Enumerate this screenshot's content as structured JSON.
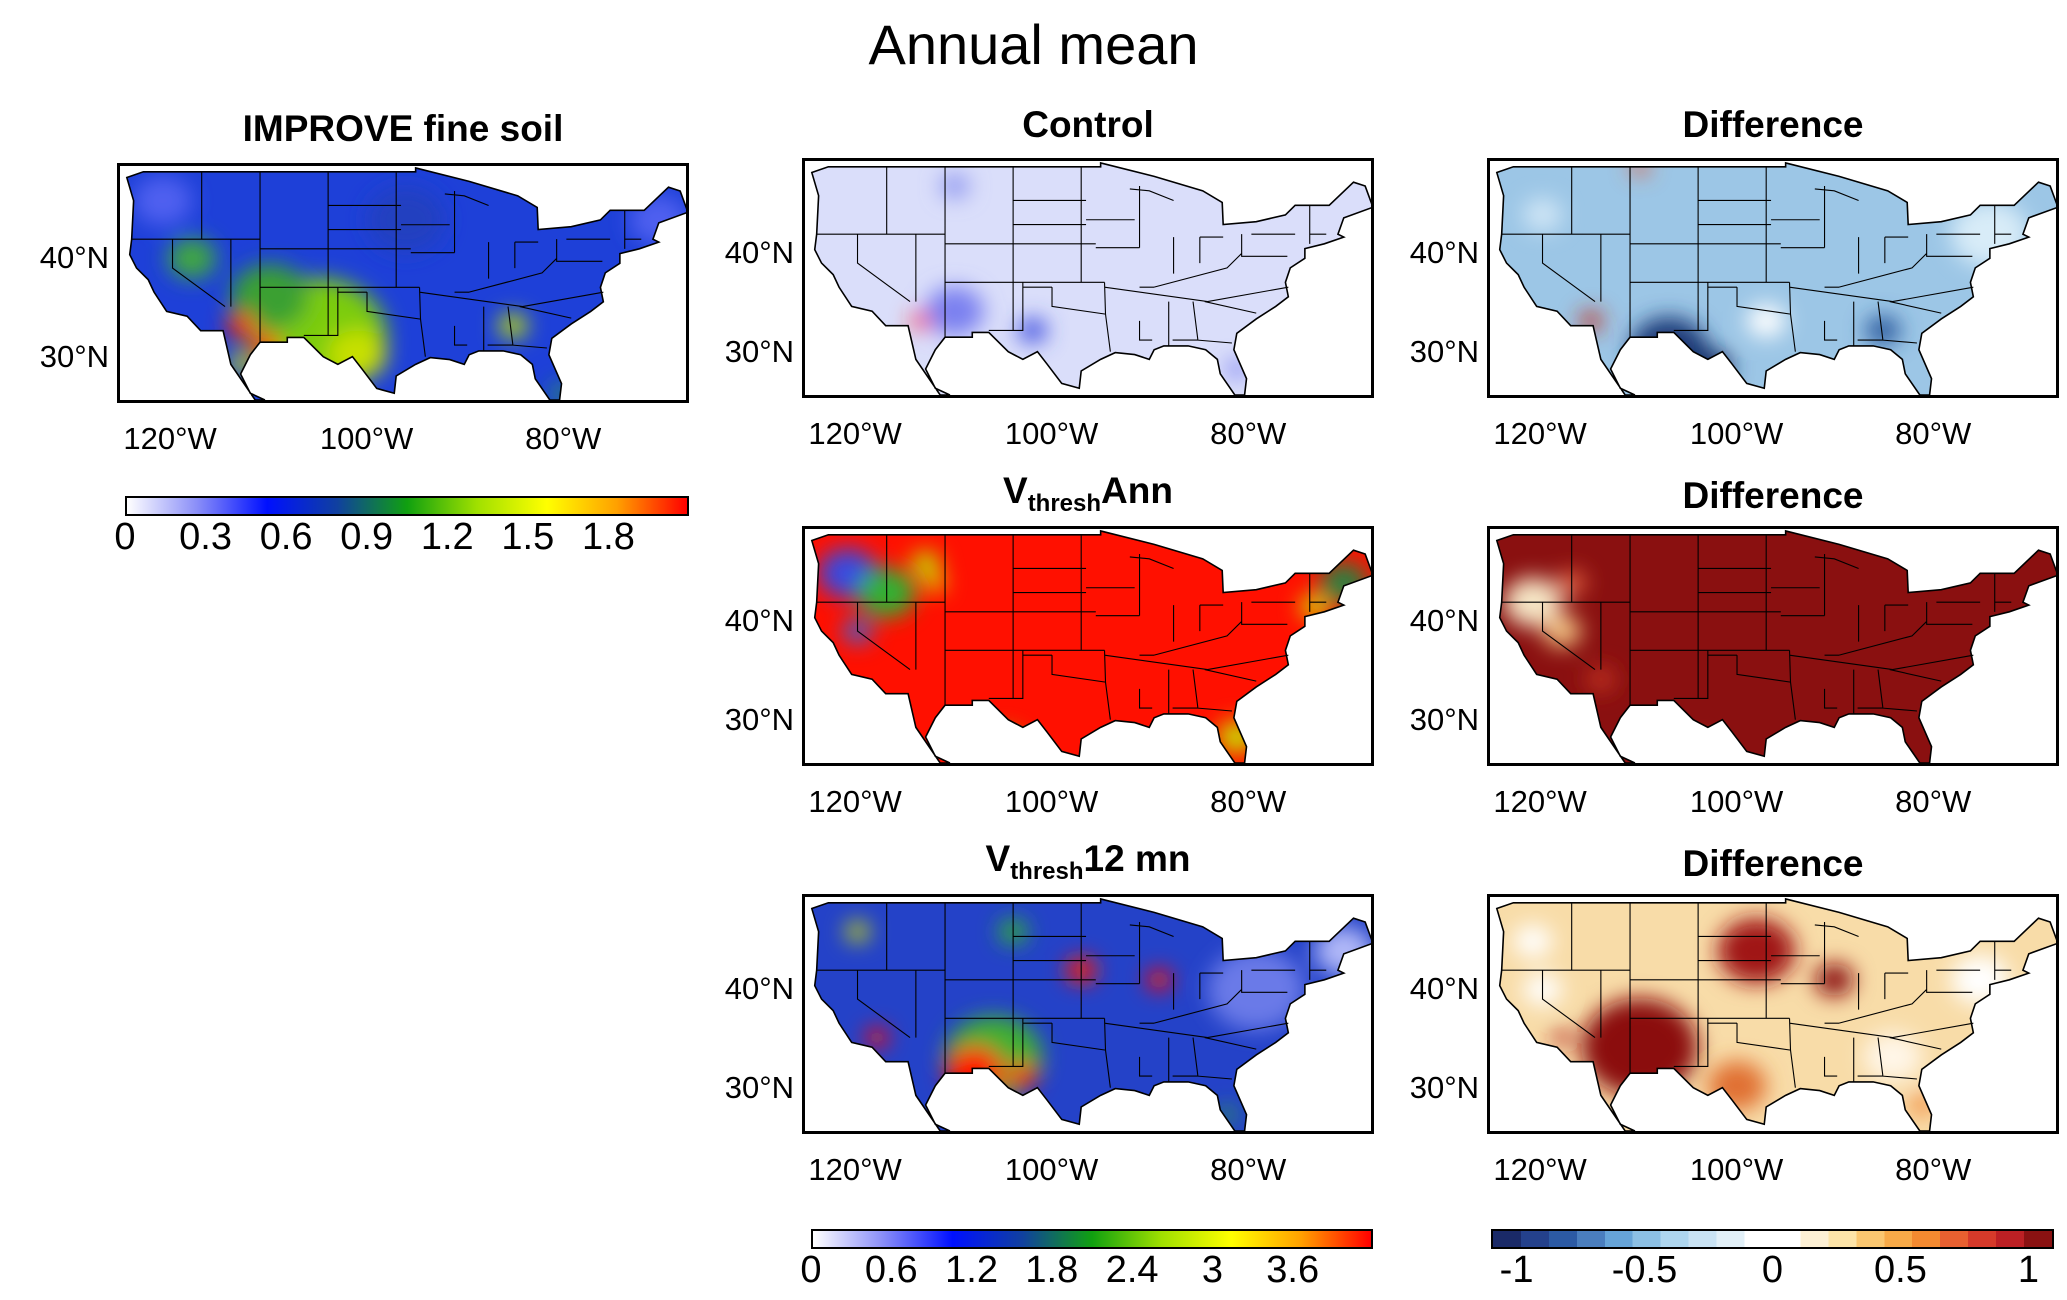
{
  "title": "Annual mean",
  "axis_labels": {
    "lat": [
      {
        "value": 40,
        "label": "40°N"
      },
      {
        "value": 30,
        "label": "30°N"
      }
    ],
    "lon": [
      {
        "value": -120,
        "label": "120°W"
      },
      {
        "value": -100,
        "label": "100°W"
      },
      {
        "value": -80,
        "label": "80°W"
      }
    ]
  },
  "panels": [
    {
      "id": "improve",
      "title": "IMPROVE fine soil",
      "base": "#1e40d8",
      "blobs": [
        [
          -105,
          32,
          7,
          "#7ccc10"
        ],
        [
          -110,
          36,
          4,
          "#3aa030"
        ],
        [
          -118,
          40,
          2.5,
          "#40a840"
        ],
        [
          -113,
          33,
          1.5,
          "#ff2000"
        ],
        [
          -110.5,
          30.8,
          1.6,
          "#ff1a00"
        ],
        [
          -101,
          30,
          3,
          "#c8e000"
        ],
        [
          -85,
          33,
          1.5,
          "#c0e000"
        ],
        [
          -121,
          46,
          3,
          "#5060f0"
        ],
        [
          -70,
          44,
          3,
          "#5060f0"
        ],
        [
          -96,
          44,
          4,
          "#2040c0"
        ],
        [
          -80,
          26,
          1,
          "#30b030"
        ],
        [
          -113,
          29,
          1.2,
          "#d8f000"
        ]
      ]
    },
    {
      "id": "control",
      "title": "Control",
      "base": "#dadefa",
      "blobs": [
        [
          -110,
          34,
          3,
          "#7a80f0"
        ],
        [
          -113.5,
          33,
          1,
          "#ff2000"
        ],
        [
          -102,
          32,
          1.5,
          "#4050e0"
        ],
        [
          -110,
          47,
          1.5,
          "#9098f0"
        ],
        [
          -81,
          28,
          1,
          "#6a70f0"
        ]
      ]
    },
    {
      "id": "diff1",
      "title": "Difference",
      "base": "#9cc6e6",
      "blobs": [
        [
          -107,
          30,
          4,
          "#1a3a78"
        ],
        [
          -103,
          28,
          2.5,
          "#15306a"
        ],
        [
          -115,
          33,
          1.2,
          "#c03020"
        ],
        [
          -85,
          32,
          1.8,
          "#2a5a9e"
        ],
        [
          -110,
          49,
          1,
          "#e06040"
        ],
        [
          -74,
          42,
          4,
          "#d8ecf8"
        ],
        [
          -120,
          44,
          2,
          "#d0e6f6"
        ],
        [
          -97,
          33,
          2,
          "#ffffff"
        ]
      ]
    },
    {
      "id": "vann",
      "title_parts": [
        "V",
        "thresh",
        "Ann"
      ],
      "base": "#ff1000",
      "blobs": [
        [
          -121,
          45,
          3,
          "#3848e0"
        ],
        [
          -117,
          43,
          3,
          "#30b030"
        ],
        [
          -113,
          46,
          1.5,
          "#c0e000"
        ],
        [
          -120,
          39,
          1.5,
          "#4060d0"
        ],
        [
          -70,
          44,
          2.5,
          "#2a8040"
        ],
        [
          -73,
          41.5,
          1.5,
          "#d0e000"
        ],
        [
          -81,
          28,
          2,
          "#c8e000"
        ],
        [
          -105,
          27,
          2,
          "#80d000"
        ],
        [
          -112,
          44,
          1,
          "#d8f000"
        ]
      ]
    },
    {
      "id": "diff2",
      "title": "Difference",
      "base": "#8a1010",
      "blobs": [
        [
          -121,
          42,
          3,
          "#f6e6c6"
        ],
        [
          -118,
          39,
          2,
          "#f0c080"
        ],
        [
          -117,
          44,
          1.5,
          "#e06040"
        ],
        [
          -104,
          26,
          2,
          "#e05030"
        ],
        [
          -114,
          34,
          1.5,
          "#c03020"
        ]
      ]
    },
    {
      "id": "v12",
      "title_parts": [
        "V",
        "thresh",
        "12 mn"
      ],
      "base": "#2442c8",
      "blobs": [
        [
          -106,
          33,
          5,
          "#40b030"
        ],
        [
          -108,
          31.5,
          3,
          "#ff1000"
        ],
        [
          -103,
          31,
          1.5,
          "#ff1000"
        ],
        [
          -97,
          42,
          1.6,
          "#ff1a00"
        ],
        [
          -89,
          41,
          1.3,
          "#ff1000"
        ],
        [
          -118,
          35,
          1.2,
          "#ff1000"
        ],
        [
          -104,
          46,
          1.5,
          "#30b030"
        ],
        [
          -79,
          40,
          5,
          "#6a7ae8"
        ],
        [
          -70,
          44,
          3,
          "#b0b8f8"
        ],
        [
          -120,
          46,
          1.2,
          "#d0e000"
        ],
        [
          -82,
          27,
          1,
          "#30a040"
        ]
      ]
    },
    {
      "id": "diff3",
      "title": "Difference",
      "base": "#f8dca8",
      "blobs": [
        [
          -110,
          34,
          6,
          "#8b1010"
        ],
        [
          -98,
          44,
          4,
          "#a01818"
        ],
        [
          -90,
          41,
          2,
          "#8b1010"
        ],
        [
          -121,
          45,
          2,
          "#ffffff"
        ],
        [
          -120,
          40,
          2,
          "#ffffff"
        ],
        [
          -84,
          33,
          3,
          "#fff6e8"
        ],
        [
          -75,
          41,
          3,
          "#ffffff"
        ],
        [
          -100,
          30,
          3,
          "#e07030"
        ],
        [
          -81,
          28,
          1.2,
          "#f08030"
        ],
        [
          -118,
          35,
          1,
          "#b02020"
        ]
      ]
    }
  ],
  "colorbars": {
    "improve": {
      "labels": [
        "0",
        "0.3",
        "0.6",
        "0.9",
        "1.2",
        "1.5",
        "1.8"
      ],
      "values": [
        0,
        0.3,
        0.6,
        0.9,
        1.2,
        1.5,
        1.8
      ],
      "range": [
        0,
        2.1
      ],
      "colors": [
        "#ffffff",
        "#8a8ef8",
        "#0010ff",
        "#1040a0",
        "#10a010",
        "#a0e000",
        "#ffff00",
        "#ffa000",
        "#ff0000"
      ]
    },
    "model": {
      "labels": [
        "0",
        "0.6",
        "1.2",
        "1.8",
        "2.4",
        "3",
        "3.6"
      ],
      "values": [
        0,
        0.6,
        1.2,
        1.8,
        2.4,
        3,
        3.6
      ],
      "range": [
        0,
        4.2
      ],
      "colors": [
        "#ffffff",
        "#8a8ef8",
        "#0010ff",
        "#1040a0",
        "#10a010",
        "#a0e000",
        "#ffff00",
        "#ffa000",
        "#ff0000"
      ]
    },
    "difference": {
      "labels": [
        "-1",
        "-0.5",
        "0",
        "0.5",
        "1"
      ],
      "values": [
        -1,
        -0.5,
        0,
        0.5,
        1
      ],
      "range": [
        -1.1,
        1.1
      ],
      "colors": [
        "#1a2a68",
        "#24418c",
        "#2c5aa4",
        "#4a7ebe",
        "#66a4d8",
        "#8cc0e4",
        "#aed6ef",
        "#c9e3f4",
        "#e2f0f8",
        "#ffffff",
        "#ffffff",
        "#fdf0d4",
        "#fde4a8",
        "#fbc770",
        "#f8aa48",
        "#f48a30",
        "#e86030",
        "#d63a2a",
        "#bc2024",
        "#8a1212"
      ]
    }
  }
}
